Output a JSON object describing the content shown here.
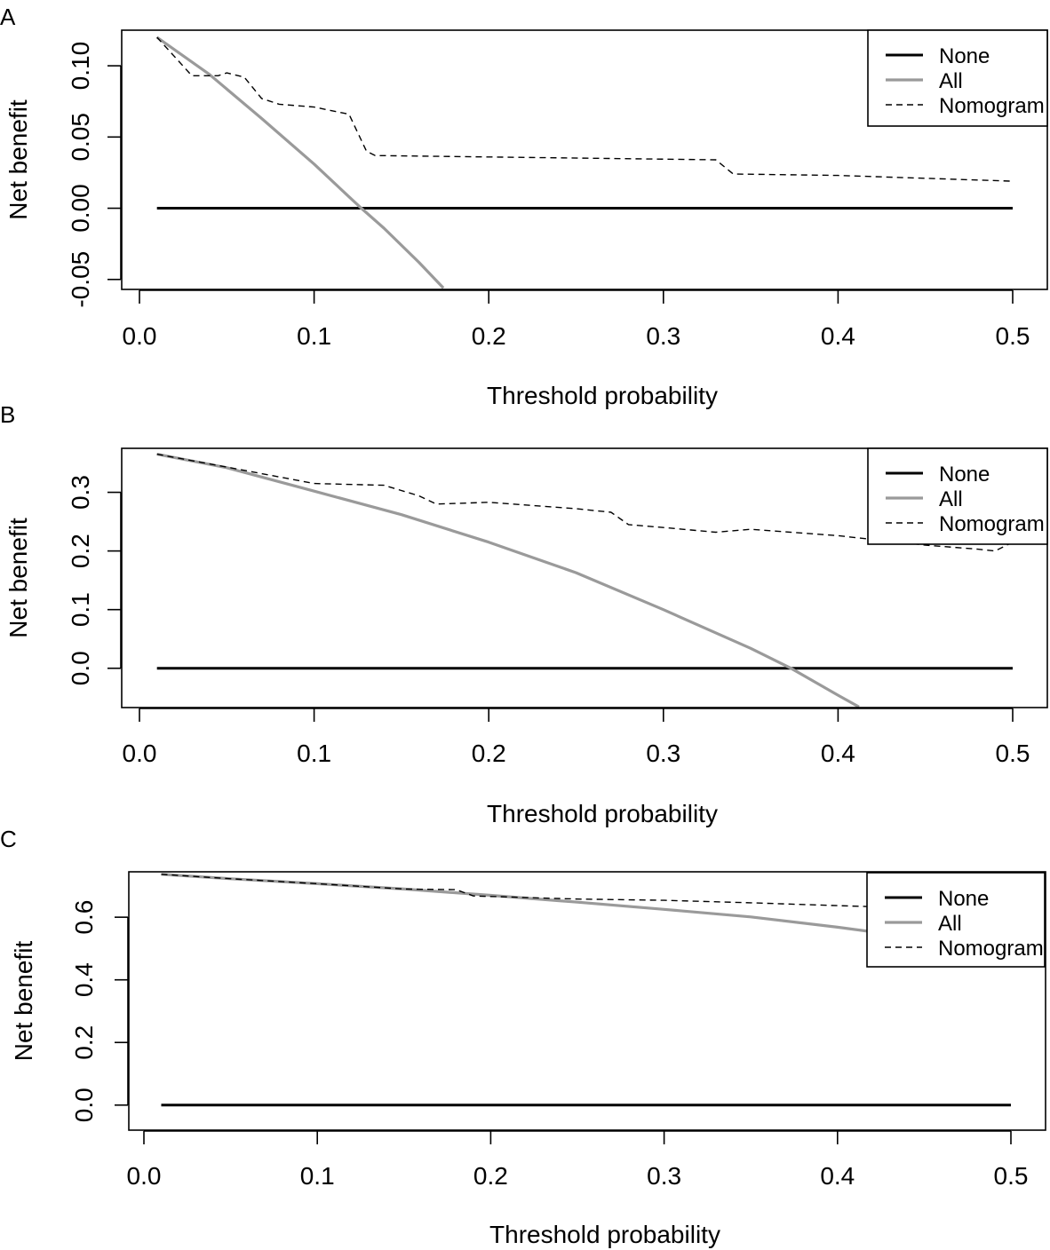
{
  "colors": {
    "none": "#000000",
    "all": "#9a9a9a",
    "nomogram": "#000000",
    "frame": "#000000"
  },
  "chart_data": [
    {
      "panel_label": "A",
      "type": "line",
      "xlabel": "Threshold probability",
      "ylabel": "Net benefit",
      "xlim": [
        0.0,
        0.5
      ],
      "ylim": [
        -0.057,
        0.125
      ],
      "xticks": [
        0.0,
        0.1,
        0.2,
        0.3,
        0.4,
        0.5
      ],
      "xtick_labels": [
        "0.0",
        "0.1",
        "0.2",
        "0.3",
        "0.4",
        "0.5"
      ],
      "yticks": [
        -0.05,
        0.0,
        0.05,
        0.1
      ],
      "ytick_labels": [
        "-0.05",
        "0.00",
        "0.05",
        "0.10"
      ],
      "legend": {
        "position": "top-right",
        "labels": [
          "None",
          "All",
          "Nomogram"
        ]
      },
      "series": [
        {
          "name": "None",
          "style": "solid-black",
          "x": [
            0.01,
            0.5
          ],
          "y": [
            0.0,
            0.0
          ]
        },
        {
          "name": "All",
          "style": "solid-grey",
          "x": [
            0.01,
            0.04,
            0.07,
            0.1,
            0.12,
            0.127,
            0.14,
            0.16,
            0.174
          ],
          "y": [
            0.12,
            0.094,
            0.063,
            0.031,
            0.008,
            0.0,
            -0.014,
            -0.038,
            -0.056
          ]
        },
        {
          "name": "Nomogram",
          "style": "dashed-black",
          "x": [
            0.01,
            0.03,
            0.045,
            0.05,
            0.06,
            0.07,
            0.08,
            0.1,
            0.12,
            0.13,
            0.135,
            0.2,
            0.33,
            0.34,
            0.4,
            0.5
          ],
          "y": [
            0.12,
            0.093,
            0.093,
            0.095,
            0.092,
            0.077,
            0.073,
            0.071,
            0.066,
            0.04,
            0.037,
            0.036,
            0.034,
            0.024,
            0.023,
            0.019
          ]
        }
      ]
    },
    {
      "panel_label": "B",
      "type": "line",
      "xlabel": "Threshold probability",
      "ylabel": "Net benefit",
      "xlim": [
        0.0,
        0.5
      ],
      "ylim": [
        -0.067,
        0.375
      ],
      "xticks": [
        0.0,
        0.1,
        0.2,
        0.3,
        0.4,
        0.5
      ],
      "xtick_labels": [
        "0.0",
        "0.1",
        "0.2",
        "0.3",
        "0.4",
        "0.5"
      ],
      "yticks": [
        0.0,
        0.1,
        0.2,
        0.3
      ],
      "ytick_labels": [
        "0.0",
        "0.1",
        "0.2",
        "0.3"
      ],
      "legend": {
        "position": "top-right",
        "labels": [
          "None",
          "All",
          "Nomogram"
        ]
      },
      "series": [
        {
          "name": "None",
          "style": "solid-black",
          "x": [
            0.01,
            0.5
          ],
          "y": [
            0.0,
            0.0
          ]
        },
        {
          "name": "All",
          "style": "solid-grey",
          "x": [
            0.01,
            0.05,
            0.1,
            0.15,
            0.2,
            0.25,
            0.3,
            0.35,
            0.373,
            0.4,
            0.412
          ],
          "y": [
            0.365,
            0.342,
            0.302,
            0.262,
            0.215,
            0.163,
            0.1,
            0.034,
            0.0,
            -0.046,
            -0.066
          ]
        },
        {
          "name": "Nomogram",
          "style": "dashed-black",
          "x": [
            0.01,
            0.05,
            0.1,
            0.14,
            0.16,
            0.17,
            0.2,
            0.25,
            0.27,
            0.28,
            0.3,
            0.33,
            0.35,
            0.4,
            0.45,
            0.48,
            0.49,
            0.5
          ],
          "y": [
            0.365,
            0.343,
            0.315,
            0.312,
            0.294,
            0.28,
            0.283,
            0.272,
            0.266,
            0.245,
            0.24,
            0.232,
            0.237,
            0.226,
            0.21,
            0.203,
            0.2,
            0.215
          ]
        }
      ]
    },
    {
      "panel_label": "C",
      "type": "line",
      "xlabel": "Threshold probability",
      "ylabel": "Net benefit",
      "xlim": [
        0.0,
        0.5
      ],
      "ylim": [
        -0.08,
        0.745
      ],
      "xticks": [
        0.0,
        0.1,
        0.2,
        0.3,
        0.4,
        0.5
      ],
      "xtick_labels": [
        "0.0",
        "0.1",
        "0.2",
        "0.3",
        "0.4",
        "0.5"
      ],
      "yticks": [
        0.0,
        0.2,
        0.4,
        0.6
      ],
      "ytick_labels": [
        "0.0",
        "0.2",
        "0.4",
        "0.6"
      ],
      "legend": {
        "position": "top-right",
        "labels": [
          "None",
          "All",
          "Nomogram"
        ]
      },
      "series": [
        {
          "name": "None",
          "style": "solid-black",
          "x": [
            0.01,
            0.5
          ],
          "y": [
            0.0,
            0.0
          ]
        },
        {
          "name": "All",
          "style": "solid-grey",
          "x": [
            0.01,
            0.05,
            0.1,
            0.15,
            0.2,
            0.25,
            0.3,
            0.35,
            0.4,
            0.43
          ],
          "y": [
            0.737,
            0.723,
            0.707,
            0.69,
            0.67,
            0.648,
            0.625,
            0.601,
            0.568,
            0.546
          ]
        },
        {
          "name": "Nomogram",
          "style": "dashed-black",
          "x": [
            0.01,
            0.05,
            0.1,
            0.15,
            0.18,
            0.19,
            0.25,
            0.3,
            0.35,
            0.4,
            0.43
          ],
          "y": [
            0.737,
            0.723,
            0.707,
            0.69,
            0.688,
            0.668,
            0.658,
            0.654,
            0.646,
            0.637,
            0.632
          ]
        }
      ]
    }
  ]
}
